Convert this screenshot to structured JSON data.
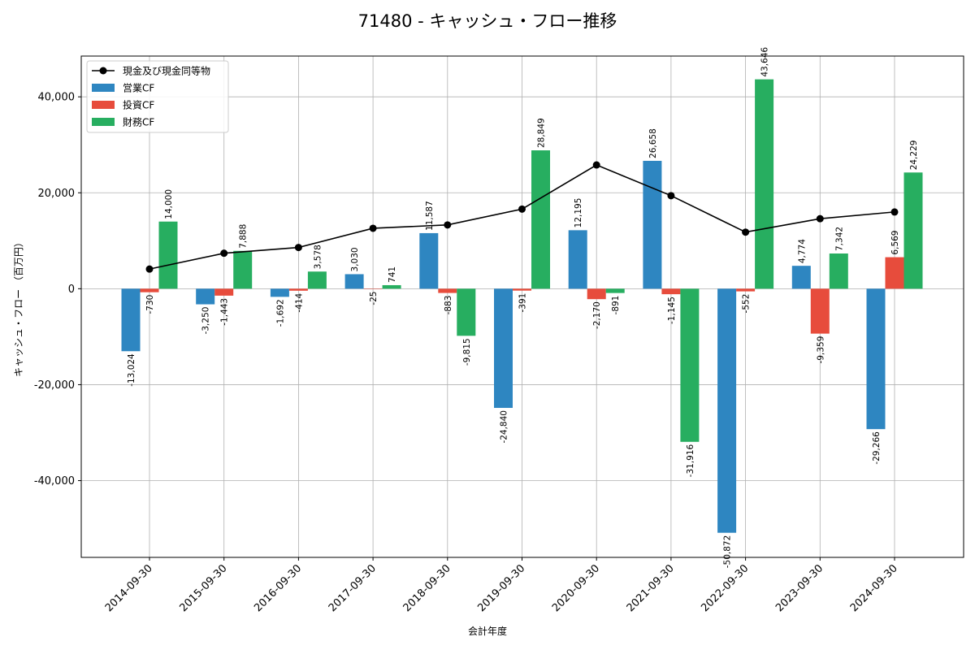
{
  "chart_data": {
    "type": "bar",
    "title": "71480 - キャッシュ・フロー推移",
    "xlabel": "会計年度",
    "ylabel": "キャッシュ・フロー （百万円）",
    "ylim": [
      -56000,
      48500
    ],
    "yticks": [
      -40000,
      -20000,
      0,
      20000,
      40000
    ],
    "ytick_labels": [
      "-40,000",
      "-20,000",
      "0",
      "20,000",
      "40,000"
    ],
    "grid": true,
    "legend_position": "top-left",
    "categories": [
      "2014-09-30",
      "2015-09-30",
      "2016-09-30",
      "2017-09-30",
      "2018-09-30",
      "2019-09-30",
      "2020-09-30",
      "2021-09-30",
      "2022-09-30",
      "2023-09-30",
      "2024-09-30"
    ],
    "series": [
      {
        "name": "営業CF",
        "kind": "bar",
        "color": "#2e86c1",
        "values": [
          -13024,
          -3250,
          -1692,
          3030,
          11587,
          -24840,
          12195,
          26658,
          -50872,
          4774,
          -29266
        ],
        "labels": [
          "-13,024",
          "-3,250",
          "-1,692",
          "3,030",
          "11,587",
          "-24,840",
          "12,195",
          "26,658",
          "-50,872",
          "4,774",
          "-29,266"
        ]
      },
      {
        "name": "投資CF",
        "kind": "bar",
        "color": "#e74c3c",
        "values": [
          -730,
          -1443,
          -414,
          -25,
          -883,
          -391,
          -2170,
          -1145,
          -552,
          -9359,
          6569
        ],
        "labels": [
          "-730",
          "-1,443",
          "-414",
          "-25",
          "-883",
          "-391",
          "-2,170",
          "-1,145",
          "-552",
          "-9,359",
          "6,569"
        ]
      },
      {
        "name": "財務CF",
        "kind": "bar",
        "color": "#27ae60",
        "values": [
          14000,
          7888,
          3578,
          741,
          -9815,
          28849,
          -891,
          -31916,
          43646,
          7342,
          24229
        ],
        "labels": [
          "14,000",
          "7,888",
          "3,578",
          "741",
          "-9,815",
          "28,849",
          "-891",
          "-31,916",
          "43,646",
          "7,342",
          "24,229"
        ]
      },
      {
        "name": "現金及び現金同等物",
        "kind": "line",
        "color": "#000000",
        "values": [
          4100,
          7400,
          8600,
          12600,
          13300,
          16600,
          25800,
          19400,
          11800,
          14600,
          16000
        ]
      }
    ]
  }
}
